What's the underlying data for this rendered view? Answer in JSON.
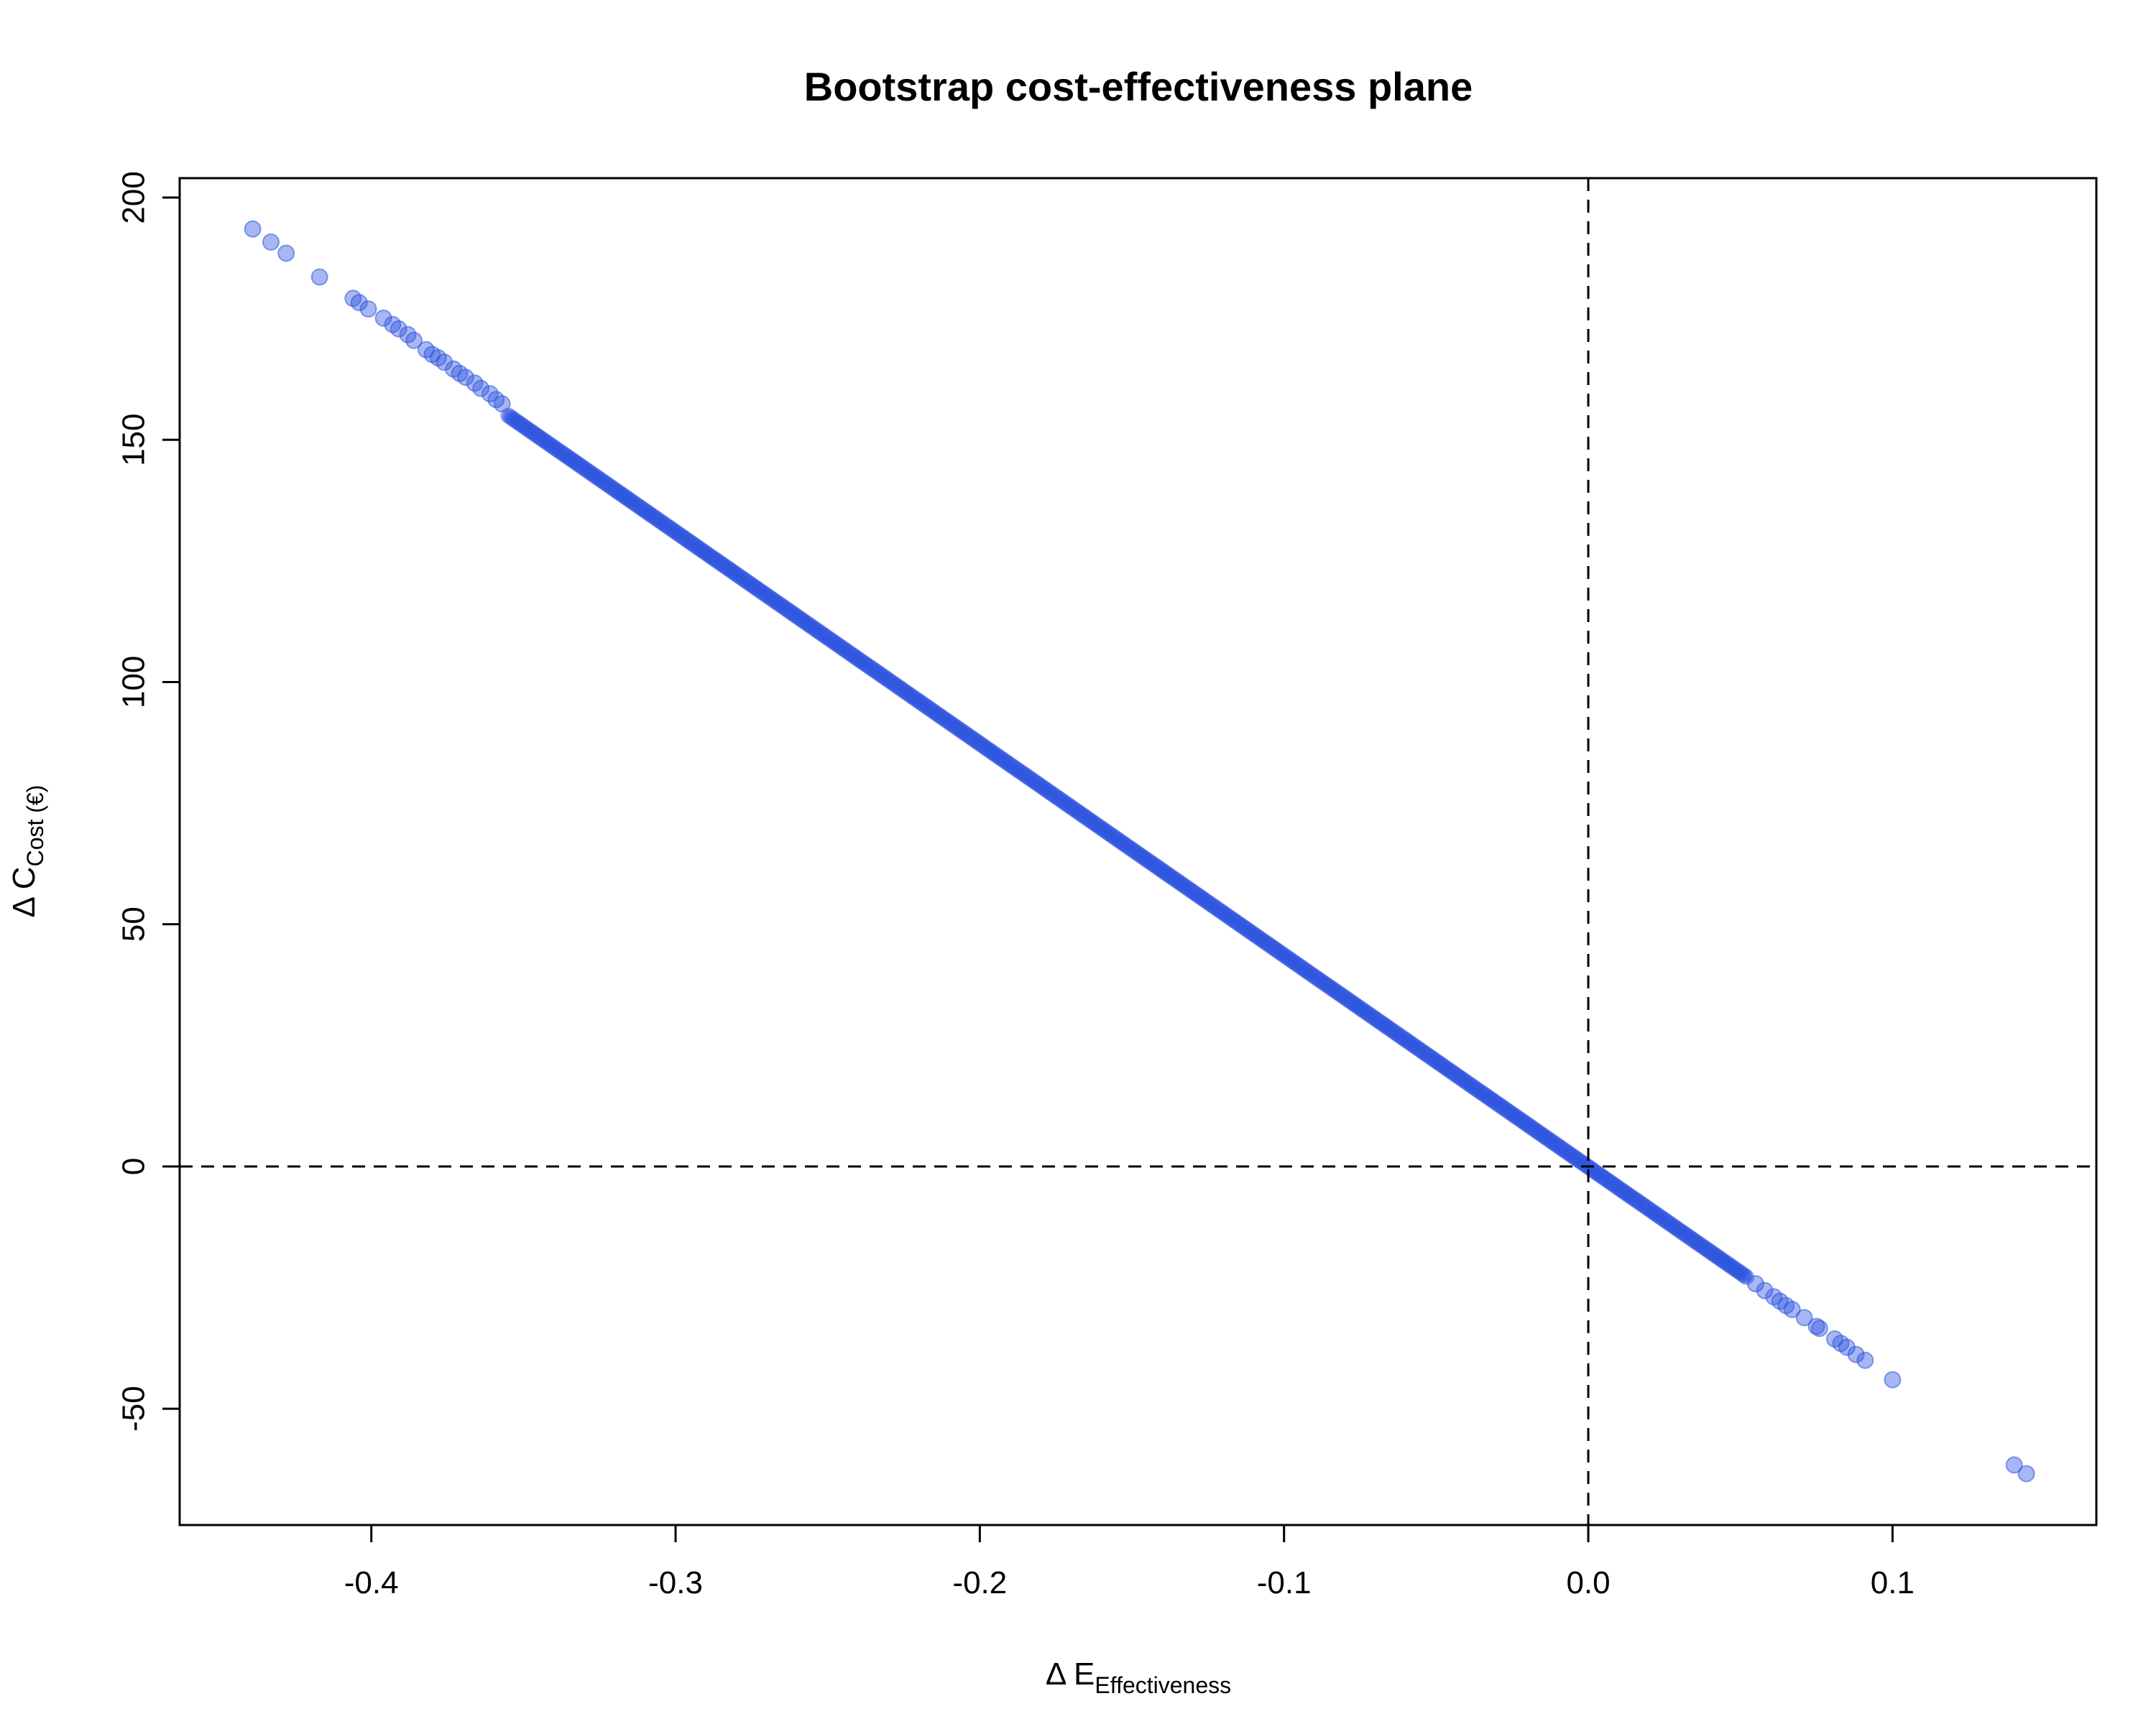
{
  "chart_data": {
    "type": "scatter",
    "title": "Bootstrap cost-effectiveness plane",
    "xlabel": {
      "prefix": "Δ E",
      "subscript": "Effectiveness"
    },
    "ylabel": {
      "prefix": "Δ C",
      "subscript": "Cost (€)"
    },
    "xlim": [
      -0.463,
      0.167
    ],
    "ylim": [
      -74,
      204
    ],
    "x_ticks": [
      -0.4,
      -0.3,
      -0.2,
      -0.1,
      0.0,
      0.1
    ],
    "x_tick_labels": [
      "-0.4",
      "-0.3",
      "-0.2",
      "-0.1",
      "0.0",
      "0.1"
    ],
    "y_ticks": [
      -50,
      0,
      50,
      100,
      150,
      200
    ],
    "y_tick_labels": [
      "-50",
      "0",
      "50",
      "100",
      "150",
      "200"
    ],
    "grid": false,
    "legend": "none",
    "reference_lines": [
      {
        "axis": "x",
        "value": 0,
        "style": "dashed"
      },
      {
        "axis": "y",
        "value": 0,
        "style": "dashed"
      }
    ],
    "point_color": "#2d53e0",
    "point_opacity": 0.42,
    "dense_band": {
      "description": "bootstrap replicates densely lying on a line",
      "x_from": -0.355,
      "y_from": 155,
      "x_to": 0.052,
      "y_to": -22.8
    },
    "points": [
      {
        "x": -0.439,
        "y": 193.5
      },
      {
        "x": -0.433,
        "y": 190.8
      },
      {
        "x": -0.428,
        "y": 188.5
      },
      {
        "x": -0.417,
        "y": 183.6
      },
      {
        "x": -0.406,
        "y": 179.2
      },
      {
        "x": -0.404,
        "y": 178.3
      },
      {
        "x": -0.401,
        "y": 177.0
      },
      {
        "x": -0.396,
        "y": 175.1
      },
      {
        "x": -0.393,
        "y": 173.8
      },
      {
        "x": -0.391,
        "y": 172.9
      },
      {
        "x": -0.388,
        "y": 171.7
      },
      {
        "x": -0.386,
        "y": 170.5
      },
      {
        "x": -0.382,
        "y": 168.6
      },
      {
        "x": -0.38,
        "y": 167.6
      },
      {
        "x": -0.378,
        "y": 166.9
      },
      {
        "x": -0.376,
        "y": 166.0
      },
      {
        "x": -0.373,
        "y": 164.6
      },
      {
        "x": -0.371,
        "y": 163.7
      },
      {
        "x": -0.369,
        "y": 162.9
      },
      {
        "x": -0.366,
        "y": 161.7
      },
      {
        "x": -0.364,
        "y": 160.6
      },
      {
        "x": -0.361,
        "y": 159.5
      },
      {
        "x": -0.359,
        "y": 158.3
      },
      {
        "x": -0.357,
        "y": 157.4
      },
      {
        "x": 0.055,
        "y": -24.2
      },
      {
        "x": 0.058,
        "y": -25.6
      },
      {
        "x": 0.061,
        "y": -26.9
      },
      {
        "x": 0.063,
        "y": -27.8
      },
      {
        "x": 0.065,
        "y": -28.7
      },
      {
        "x": 0.067,
        "y": -29.5
      },
      {
        "x": 0.071,
        "y": -31.2
      },
      {
        "x": 0.075,
        "y": -33.0
      },
      {
        "x": 0.076,
        "y": -33.4
      },
      {
        "x": 0.081,
        "y": -35.6
      },
      {
        "x": 0.083,
        "y": -36.5
      },
      {
        "x": 0.085,
        "y": -37.3
      },
      {
        "x": 0.088,
        "y": -38.8
      },
      {
        "x": 0.091,
        "y": -40.0
      },
      {
        "x": 0.1,
        "y": -44.0
      },
      {
        "x": 0.14,
        "y": -61.6
      },
      {
        "x": 0.144,
        "y": -63.4
      }
    ]
  }
}
